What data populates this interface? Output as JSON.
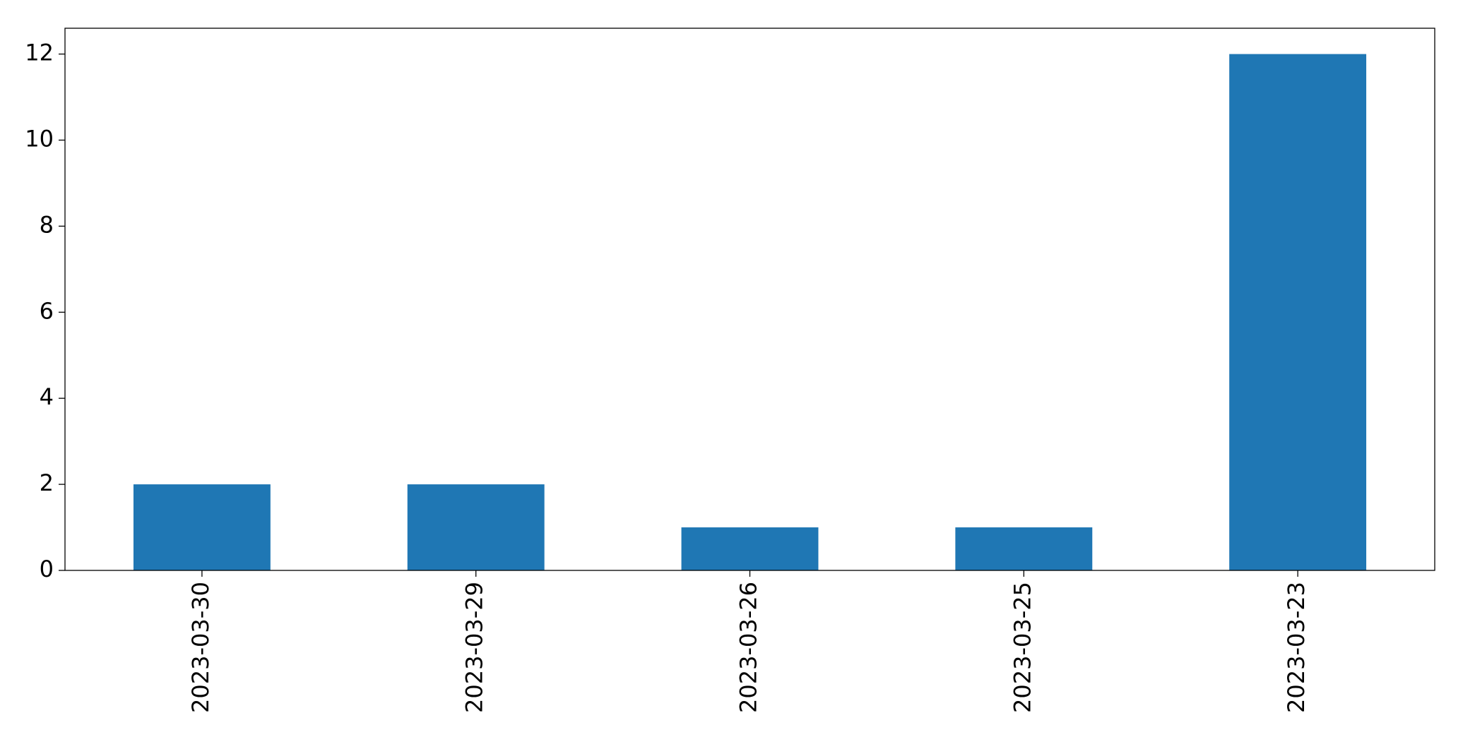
{
  "chart_data": {
    "type": "bar",
    "categories": [
      "2023-03-30",
      "2023-03-29",
      "2023-03-26",
      "2023-03-25",
      "2023-03-23"
    ],
    "values": [
      2,
      2,
      1,
      1,
      12
    ],
    "color": "#1f77b4",
    "ylim": [
      0,
      12.6
    ],
    "yticks": [
      0,
      2,
      4,
      6,
      8,
      10,
      12
    ],
    "grid": false
  }
}
